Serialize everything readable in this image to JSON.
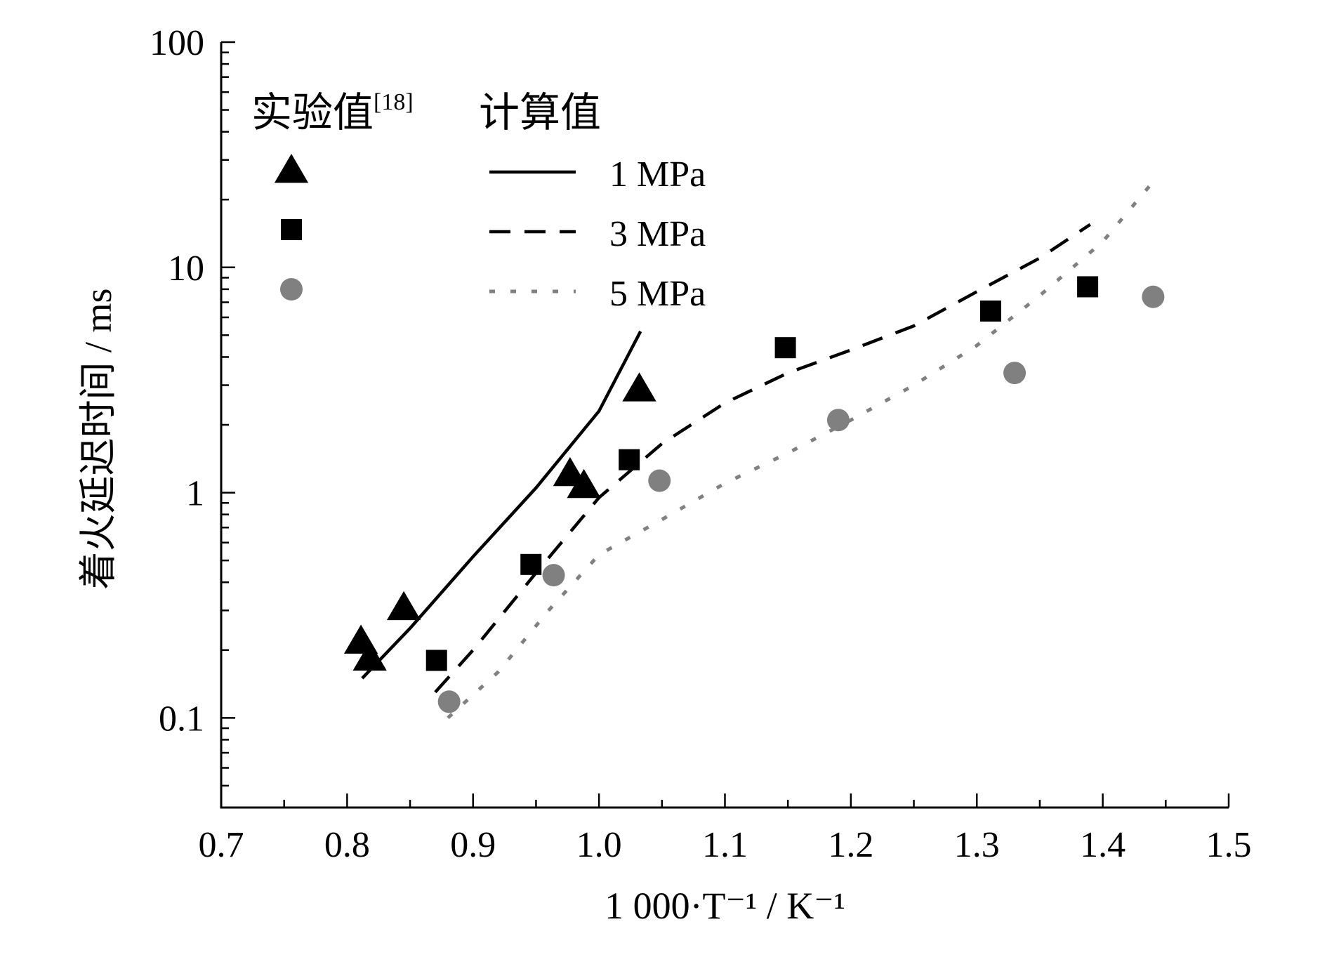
{
  "chart_data": {
    "type": "scatter",
    "xlabel": "1 000·T⁻¹ / K⁻¹",
    "ylabel": "着火延迟时间 / ms",
    "xlim": [
      0.7,
      1.5
    ],
    "ylim": [
      0.04,
      100
    ],
    "y_scale": "log",
    "x_ticks": [
      "0.7",
      "0.8",
      "0.9",
      "1.0",
      "1.1",
      "1.2",
      "1.3",
      "1.4",
      "1.5"
    ],
    "y_ticks": [
      "0.1",
      "1",
      "10",
      "100"
    ],
    "grid": false,
    "legend": {
      "placement": "top-left",
      "experimental_title": "实验值",
      "experimental_ref": "[18]",
      "calculated_title": "计算值"
    },
    "series": [
      {
        "kind": "experimental",
        "marker": "triangle",
        "color": "#000000",
        "pressure": "1 MPa",
        "points": [
          [
            0.811,
            0.22
          ],
          [
            0.818,
            0.185
          ],
          [
            0.845,
            0.31
          ],
          [
            0.977,
            1.22
          ],
          [
            0.988,
            1.08
          ],
          [
            1.032,
            2.9
          ]
        ]
      },
      {
        "kind": "experimental",
        "marker": "square",
        "color": "#000000",
        "pressure": "3 MPa",
        "points": [
          [
            0.871,
            0.18
          ],
          [
            0.946,
            0.48
          ],
          [
            1.024,
            1.4
          ],
          [
            1.148,
            4.4
          ],
          [
            1.311,
            6.4
          ],
          [
            1.388,
            8.2
          ]
        ]
      },
      {
        "kind": "experimental",
        "marker": "circle",
        "color": "#808080",
        "pressure": "5 MPa",
        "points": [
          [
            0.881,
            0.118
          ],
          [
            0.964,
            0.43
          ],
          [
            1.048,
            1.13
          ],
          [
            1.19,
            2.1
          ],
          [
            1.33,
            3.4
          ],
          [
            1.44,
            7.4
          ]
        ]
      },
      {
        "kind": "calculated",
        "name": "1 MPa",
        "style": "solid",
        "color": "#000000",
        "points": [
          [
            0.812,
            0.15
          ],
          [
            0.85,
            0.25
          ],
          [
            0.9,
            0.52
          ],
          [
            0.95,
            1.05
          ],
          [
            1.0,
            2.3
          ],
          [
            1.033,
            5.2
          ]
        ]
      },
      {
        "kind": "calculated",
        "name": "3 MPa",
        "style": "dashed",
        "color": "#000000",
        "points": [
          [
            0.87,
            0.13
          ],
          [
            0.9,
            0.2
          ],
          [
            0.95,
            0.44
          ],
          [
            1.0,
            0.95
          ],
          [
            1.05,
            1.65
          ],
          [
            1.1,
            2.5
          ],
          [
            1.15,
            3.4
          ],
          [
            1.2,
            4.3
          ],
          [
            1.25,
            5.5
          ],
          [
            1.3,
            7.8
          ],
          [
            1.35,
            11.0
          ],
          [
            1.39,
            15.5
          ]
        ]
      },
      {
        "kind": "calculated",
        "name": "5 MPa",
        "style": "dotted",
        "color": "#808080",
        "points": [
          [
            0.88,
            0.1
          ],
          [
            0.92,
            0.16
          ],
          [
            0.96,
            0.3
          ],
          [
            1.0,
            0.53
          ],
          [
            1.05,
            0.76
          ],
          [
            1.1,
            1.1
          ],
          [
            1.15,
            1.5
          ],
          [
            1.2,
            2.1
          ],
          [
            1.25,
            3.0
          ],
          [
            1.3,
            4.5
          ],
          [
            1.35,
            7.5
          ],
          [
            1.4,
            13.0
          ],
          [
            1.44,
            24.0
          ]
        ]
      }
    ]
  }
}
